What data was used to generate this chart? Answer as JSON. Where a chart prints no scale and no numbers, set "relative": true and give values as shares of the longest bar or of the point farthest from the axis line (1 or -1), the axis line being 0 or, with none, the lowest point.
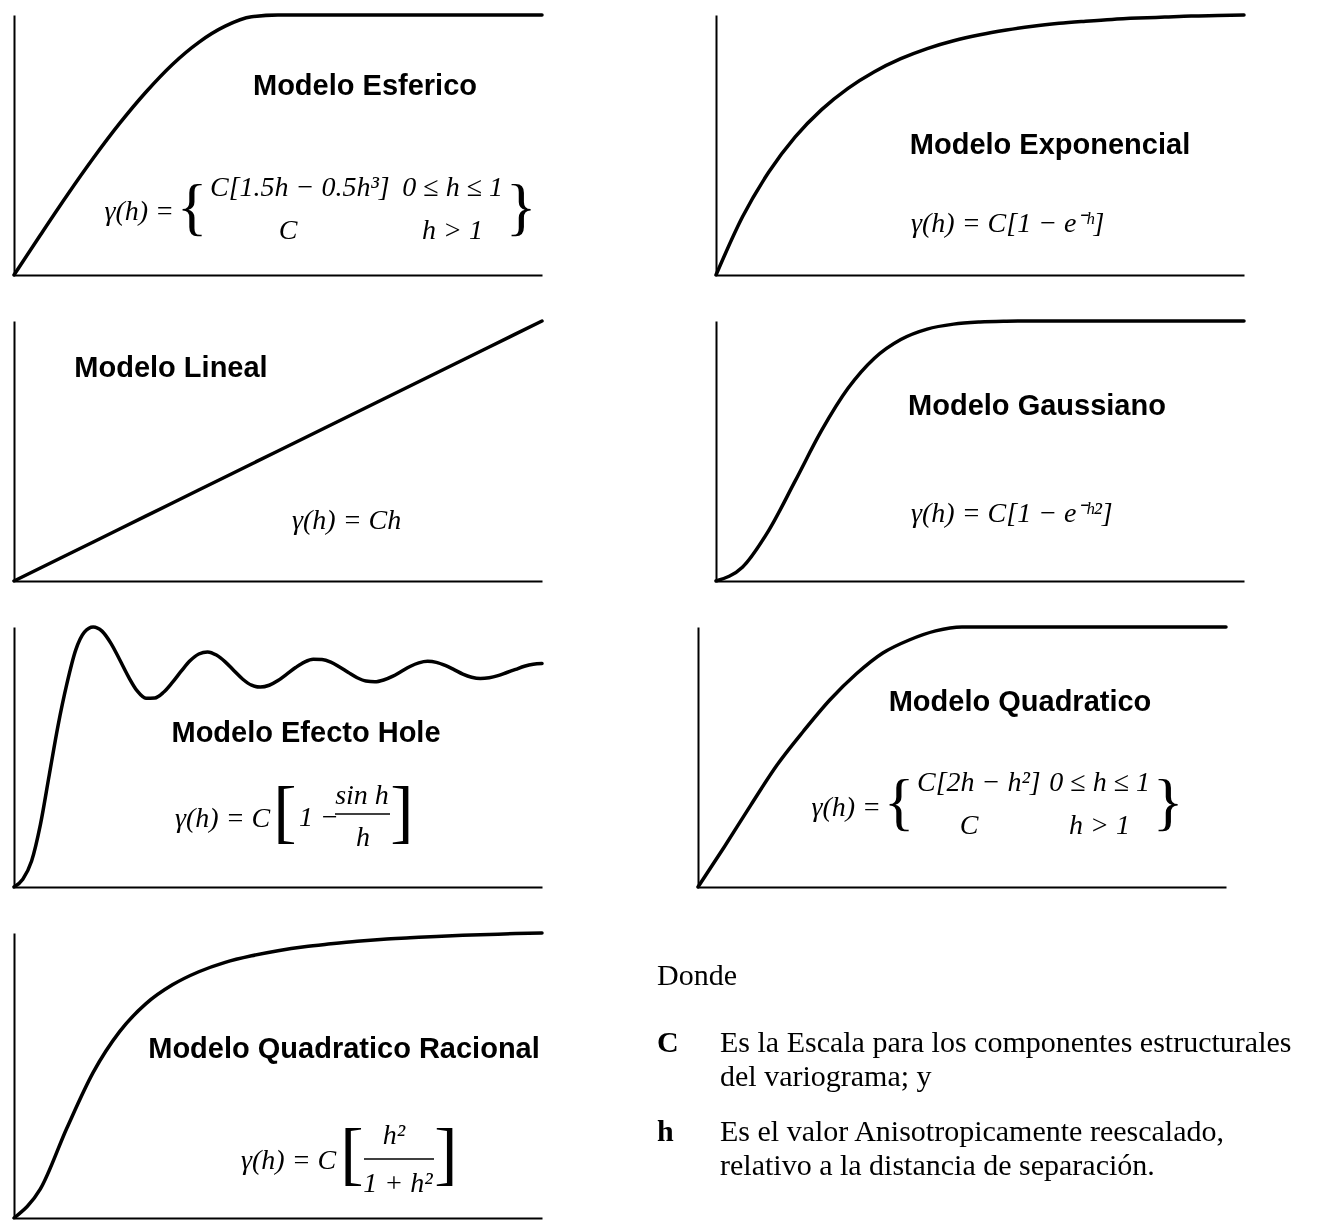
{
  "chart_data": [
    {
      "type": "line",
      "title": "Modelo Esferico",
      "relative": true,
      "color": "#000000",
      "categories": [
        null,
        null,
        null,
        null,
        null,
        null,
        null,
        null,
        null,
        null,
        null,
        null,
        null,
        null,
        null,
        null,
        null,
        null,
        null,
        null,
        null
      ],
      "values": [
        0,
        0.154,
        0.305,
        0.449,
        0.583,
        0.704,
        0.81,
        0.895,
        0.957,
        0.993,
        1,
        1,
        1,
        1,
        1,
        1,
        1,
        1,
        1,
        1,
        1
      ],
      "annotations": [
        "γ(h) =",
        "{",
        "C[1.5h − 0.5h³]",
        "0 ≤ h ≤ 1",
        "C",
        "h > 1",
        "}"
      ]
    },
    {
      "type": "line",
      "title": "Modelo Exponencial",
      "relative": true,
      "color": "#000000",
      "categories": [
        null,
        null,
        null,
        null,
        null,
        null,
        null,
        null,
        null,
        null,
        null,
        null,
        null,
        null,
        null,
        null,
        null,
        null,
        null,
        null,
        null
      ],
      "values": [
        0,
        0.223,
        0.396,
        0.531,
        0.636,
        0.718,
        0.782,
        0.832,
        0.871,
        0.901,
        0.924,
        0.942,
        0.957,
        0.968,
        0.976,
        0.983,
        0.988,
        0.992,
        0.996,
        0.998,
        1
      ],
      "annotations": [
        "γ(h) = C[1 − e⁻ʰ]"
      ]
    },
    {
      "type": "line",
      "title": "Modelo Lineal",
      "relative": true,
      "color": "#000000",
      "categories": [
        null,
        null,
        null,
        null,
        null,
        null,
        null,
        null,
        null,
        null,
        null
      ],
      "values": [
        0,
        0.1,
        0.2,
        0.3,
        0.4,
        0.5,
        0.6,
        0.7,
        0.8,
        0.9,
        1
      ],
      "annotations": [
        "γ(h) = Ch"
      ]
    },
    {
      "type": "line",
      "title": "Modelo Gaussiano",
      "relative": true,
      "color": "#000000",
      "categories": [
        null,
        null,
        null,
        null,
        null,
        null,
        null,
        null,
        null,
        null,
        null,
        null,
        null,
        null,
        null,
        null,
        null,
        null,
        null,
        null,
        null
      ],
      "values": [
        0,
        0.053,
        0.195,
        0.385,
        0.579,
        0.741,
        0.857,
        0.929,
        0.969,
        0.988,
        0.996,
        0.999,
        1,
        1,
        1,
        1,
        1,
        1,
        1,
        1,
        1
      ],
      "annotations": [
        "γ(h) = C[1 − e⁻ʰ²]"
      ]
    },
    {
      "type": "line",
      "title": "Modelo Efecto Hole",
      "relative": true,
      "color": "#000000",
      "categories": [
        null,
        null,
        null,
        null,
        null,
        null,
        null,
        null,
        null,
        null,
        null,
        null,
        null,
        null,
        null,
        null,
        null,
        null,
        null,
        null,
        null,
        null,
        null,
        null,
        null,
        null,
        null,
        null,
        null,
        null,
        null,
        null,
        null,
        null,
        null,
        null,
        null,
        null,
        null,
        null,
        null,
        null,
        null,
        null,
        null,
        null,
        null,
        null,
        null,
        null,
        null,
        null,
        null,
        null,
        null,
        null,
        null,
        null,
        null,
        null,
        null
      ],
      "values": [
        0,
        0.03,
        0.1,
        0.24,
        0.43,
        0.62,
        0.78,
        0.91,
        0.98,
        1,
        0.984,
        0.938,
        0.875,
        0.809,
        0.754,
        0.726,
        0.727,
        0.749,
        0.787,
        0.83,
        0.87,
        0.896,
        0.904,
        0.892,
        0.866,
        0.832,
        0.799,
        0.776,
        0.769,
        0.776,
        0.794,
        0.819,
        0.844,
        0.865,
        0.876,
        0.875,
        0.865,
        0.846,
        0.825,
        0.805,
        0.792,
        0.789,
        0.796,
        0.81,
        0.829,
        0.848,
        0.862,
        0.868,
        0.864,
        0.852,
        0.836,
        0.819,
        0.807,
        0.802,
        0.805,
        0.813,
        0.825,
        0.837,
        0.849,
        0.857,
        0.86
      ],
      "annotations": [
        "γ(h) = C",
        "[",
        "1 −",
        "sin h",
        "h",
        "]"
      ]
    },
    {
      "type": "line",
      "title": "Modelo Quadratico",
      "relative": true,
      "color": "#000000",
      "categories": [
        null,
        null,
        null,
        null,
        null,
        null,
        null,
        null,
        null,
        null,
        null,
        null,
        null,
        null,
        null,
        null,
        null,
        null,
        null,
        null,
        null
      ],
      "values": [
        0,
        0.155,
        0.315,
        0.47,
        0.6,
        0.72,
        0.82,
        0.9,
        0.95,
        0.985,
        1,
        1,
        1,
        1,
        1,
        1,
        1,
        1,
        1,
        1,
        1
      ],
      "annotations": [
        "γ(h) =",
        "{",
        "C[2h − h²]",
        "0 ≤ h ≤ 1",
        "C",
        "h > 1",
        "}"
      ]
    },
    {
      "type": "line",
      "title": "Modelo Quadratico Racional",
      "relative": true,
      "color": "#000000",
      "categories": [
        null,
        null,
        null,
        null,
        null,
        null,
        null,
        null,
        null,
        null,
        null,
        null,
        null,
        null,
        null,
        null,
        null,
        null,
        null,
        null,
        null
      ],
      "values": [
        0,
        0.102,
        0.315,
        0.511,
        0.654,
        0.752,
        0.818,
        0.864,
        0.897,
        0.92,
        0.938,
        0.952,
        0.962,
        0.971,
        0.978,
        0.983,
        0.988,
        0.992,
        0.995,
        0.998,
        1
      ],
      "annotations": [
        "γ(h) = C",
        "[",
        "h²",
        "1 + h²",
        "]"
      ]
    },
    {
      "type": "other",
      "annotations": [
        "Donde",
        "C",
        "Es la Escala para los componentes estructurales del variograma; y",
        "h",
        "Es el valor Anisotropicamente reescalado, relativo a la distancia de separación."
      ]
    }
  ]
}
